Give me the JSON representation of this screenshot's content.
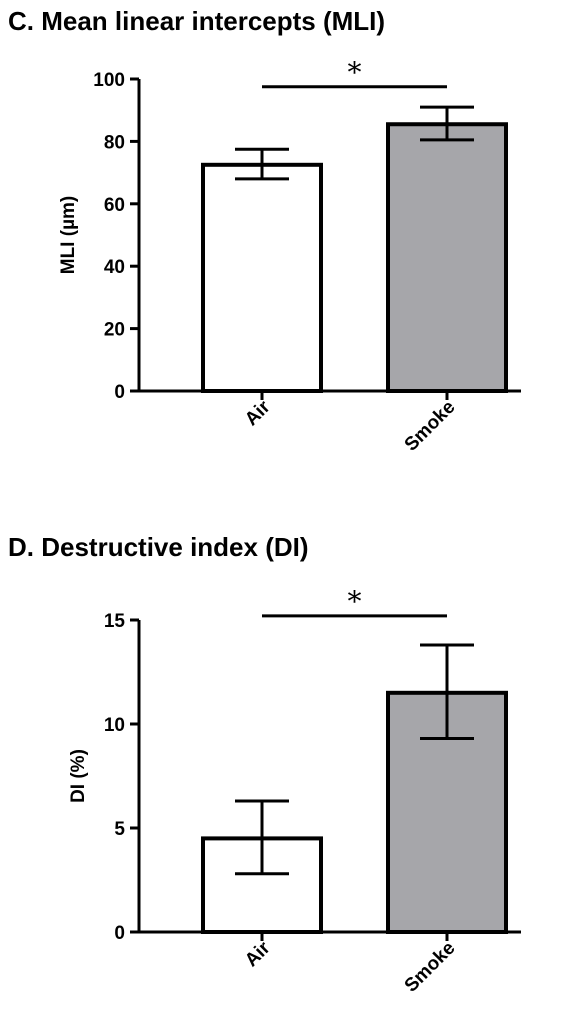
{
  "chart_data": [
    {
      "type": "bar",
      "title": "C.  Mean linear intercepts (MLI)",
      "ylabel": "MLI (µm)",
      "xlabel": "",
      "categories": [
        "Air",
        "Smoke"
      ],
      "values": [
        72.5,
        85.5
      ],
      "error_low": [
        68,
        80.5
      ],
      "error_high": [
        77.5,
        91
      ],
      "ylim": [
        0,
        100
      ],
      "yticks": [
        "0",
        "20",
        "40",
        "60",
        "80",
        "100"
      ],
      "bar_colors": [
        "#ffffff",
        "#a6a6aa"
      ],
      "significance": {
        "label": "*",
        "from": "Air",
        "to": "Smoke",
        "y": 97.5
      },
      "grid": false
    },
    {
      "type": "bar",
      "title": "D.  Destructive index (DI)",
      "ylabel": "DI (%)",
      "xlabel": "",
      "categories": [
        "Air",
        "Smoke"
      ],
      "values": [
        4.5,
        11.5
      ],
      "error_low": [
        2.8,
        9.3
      ],
      "error_high": [
        6.3,
        13.8
      ],
      "ylim": [
        0,
        15
      ],
      "yticks": [
        "0",
        "5",
        "10",
        "15"
      ],
      "bar_colors": [
        "#ffffff",
        "#a6a6aa"
      ],
      "significance": {
        "label": "*",
        "from": "Air",
        "to": "Smoke",
        "y": 15.2
      },
      "grid": false
    }
  ]
}
